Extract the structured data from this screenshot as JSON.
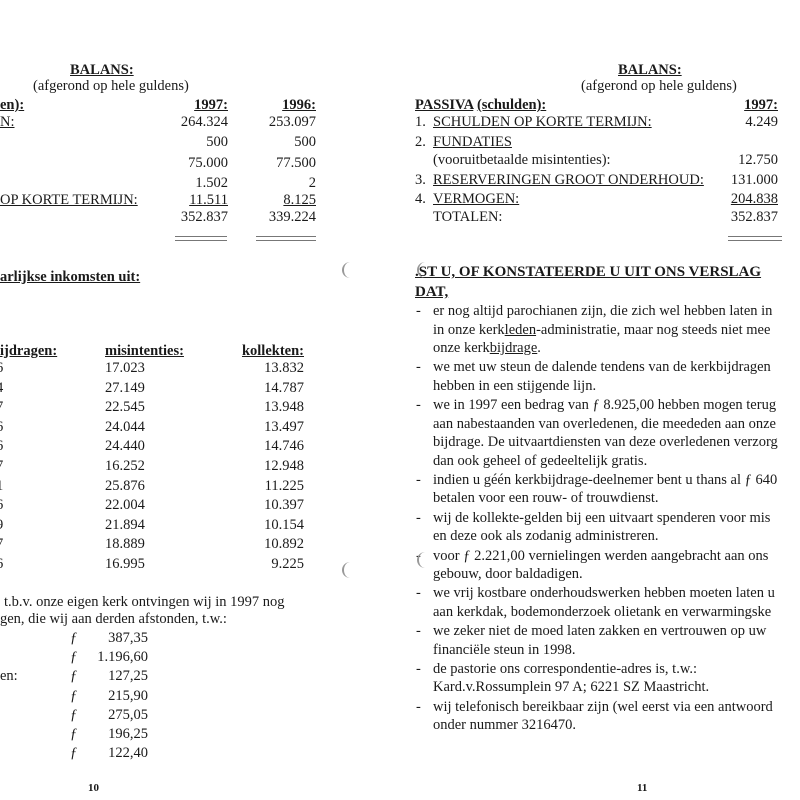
{
  "left_page": {
    "title": "BALANS:",
    "subtitle": "(afgerond op hele guldens)",
    "header_label": "en):",
    "year_1997": "1997:",
    "year_1996": "1996:",
    "balance_rows": [
      {
        "label": "N:",
        "v1997": "264.324",
        "v1996": "253.097",
        "underline_label": true
      },
      {
        "label": "",
        "v1997": "500",
        "v1996": "500"
      },
      {
        "label": "",
        "v1997": "75.000",
        "v1996": "77.500"
      },
      {
        "label": "",
        "v1997": "1.502",
        "v1996": "2"
      },
      {
        "label": "OP KORTE TERMIJN:",
        "v1997": "11.511",
        "v1996": "8.125",
        "underline_label": true,
        "underline_values": true
      },
      {
        "label": "",
        "v1997": "352.837",
        "v1996": "339.224"
      }
    ],
    "income_heading": "arlijkse inkomsten uit:",
    "table_headers": {
      "bijdragen": "ijdragen:",
      "misintenties": "misintenties:",
      "kollekten": "kollekten:"
    },
    "table_rows": [
      {
        "bijdragen": "6",
        "misintenties": "17.023",
        "kollekten": "13.832"
      },
      {
        "bijdragen": "4",
        "misintenties": "27.149",
        "kollekten": "14.787"
      },
      {
        "bijdragen": "7",
        "misintenties": "22.545",
        "kollekten": "13.948"
      },
      {
        "bijdragen": "6",
        "misintenties": "24.044",
        "kollekten": "13.497"
      },
      {
        "bijdragen": "6",
        "misintenties": "24.440",
        "kollekten": "14.746"
      },
      {
        "bijdragen": "7",
        "misintenties": "16.252",
        "kollekten": "12.948"
      },
      {
        "bijdragen": "1",
        "misintenties": "25.876",
        "kollekten": "11.225"
      },
      {
        "bijdragen": "6",
        "misintenties": "22.004",
        "kollekten": "10.397"
      },
      {
        "bijdragen": "9",
        "misintenties": "21.894",
        "kollekten": "10.154"
      },
      {
        "bijdragen": "7",
        "misintenties": "18.889",
        "kollekten": "10.892"
      },
      {
        "bijdragen": "6",
        "misintenties": "16.995",
        "kollekten": "9.225"
      }
    ],
    "paragraph_lines": [
      "t.b.v. onze eigen kerk ontvingen wij in 1997 nog",
      "gen, die wij aan derden afstonden, t.w.:"
    ],
    "currency_symbol": "ƒ",
    "donations": [
      {
        "label": "",
        "amount": "387,35"
      },
      {
        "label": "",
        "amount": "1.196,60"
      },
      {
        "label": "en:",
        "amount": "127,25"
      },
      {
        "label": "",
        "amount": "215,90"
      },
      {
        "label": "",
        "amount": "275,05"
      },
      {
        "label": "",
        "amount": "196,25"
      },
      {
        "label": "",
        "amount": "122,40"
      }
    ],
    "page_number": "10"
  },
  "right_page": {
    "title": "BALANS:",
    "subtitle": "(afgerond op hele guldens)",
    "header_label": "PASSIVA",
    "header_label_2": "(schulden):",
    "year_1997": "1997:",
    "rows": [
      {
        "num": "1.",
        "label": "SCHULDEN OP KORTE TERMIJN:",
        "value": "4.249",
        "underline": true
      },
      {
        "num": "2.",
        "label": "FUNDATIES ",
        "value": "",
        "underline": true
      },
      {
        "num": "",
        "label": "(vooruitbetaalde misintenties):",
        "value": "12.750"
      },
      {
        "num": "3.",
        "label": "RESERVERINGEN GROOT ONDERHOUD:",
        "value": "131.000",
        "underline": true
      },
      {
        "num": "4.",
        "label": "VERMOGEN:",
        "value": "204.838",
        "underline": true,
        "underline_value": true
      },
      {
        "num": "",
        "label": "TOTALEN:",
        "value": "352.837"
      }
    ],
    "heading_line1": ".ST U, OF KONSTATEERDE U UIT ONS VERSLAG",
    "heading_line2": "DAT,",
    "bullet_char": "-",
    "bullets": [
      {
        "lines": [
          [
            {
              "t": "er nog altijd parochianen zijn, die zich wel hebben laten in"
            }
          ],
          [
            {
              "t": "in onze kerk"
            },
            {
              "t": "leden",
              "u": true
            },
            {
              "t": "-administratie, maar nog steeds niet mee"
            }
          ],
          [
            {
              "t": "onze kerk"
            },
            {
              "t": "bijdrage",
              "u": true
            },
            {
              "t": "."
            }
          ]
        ]
      },
      {
        "lines": [
          [
            {
              "t": "we met uw steun de dalende tendens van de kerkbijdragen"
            }
          ],
          [
            {
              "t": "hebben in een stijgende lijn."
            }
          ]
        ]
      },
      {
        "lines": [
          [
            {
              "t": "we in 1997 een bedrag van ƒ 8.925,00 hebben mogen terug"
            }
          ],
          [
            {
              "t": "aan nabestaanden van overledenen, die meededen aan onze"
            }
          ],
          [
            {
              "t": "bijdrage. De uitvaartdiensten van deze overledenen verzorg"
            }
          ],
          [
            {
              "t": "dan ook geheel of gedeeltelijk gratis."
            }
          ]
        ]
      },
      {
        "lines": [
          [
            {
              "t": "indien u géén kerkbijdrage-deelnemer bent u thans al ƒ 640"
            }
          ],
          [
            {
              "t": "betalen voor een rouw- of trouwdienst."
            }
          ]
        ]
      },
      {
        "lines": [
          [
            {
              "t": "wij de kollekte-gelden bij een uitvaart spenderen voor mis"
            }
          ],
          [
            {
              "t": "en deze ook als zodanig administreren."
            }
          ]
        ]
      },
      {
        "lines": [
          [
            {
              "t": "voor ƒ 2.221,00 vernielingen werden aangebracht aan ons"
            }
          ],
          [
            {
              "t": "gebouw, door baldadigen."
            }
          ]
        ]
      },
      {
        "lines": [
          [
            {
              "t": "we vrij kostbare onderhoudswerken hebben moeten laten u"
            }
          ],
          [
            {
              "t": "aan kerkdak, bodemonderzoek olietank en verwarmingske"
            }
          ]
        ]
      },
      {
        "lines": [
          [
            {
              "t": "we zeker niet de moed laten zakken en vertrouwen op uw"
            }
          ],
          [
            {
              "t": "financiële steun in 1998."
            }
          ]
        ]
      },
      {
        "lines": [
          [
            {
              "t": "de pastorie ons correspondentie-adres is, t.w.:"
            }
          ],
          [
            {
              "t": "Kard.v.Rossumplein 97 A; 6221 SZ Maastricht."
            }
          ]
        ]
      },
      {
        "lines": [
          [
            {
              "t": "wij telefonisch bereikbaar zijn (wel eerst via een antwoord"
            }
          ],
          [
            {
              "t": "onder nummer 3216470."
            }
          ]
        ]
      }
    ],
    "page_number": "11"
  }
}
